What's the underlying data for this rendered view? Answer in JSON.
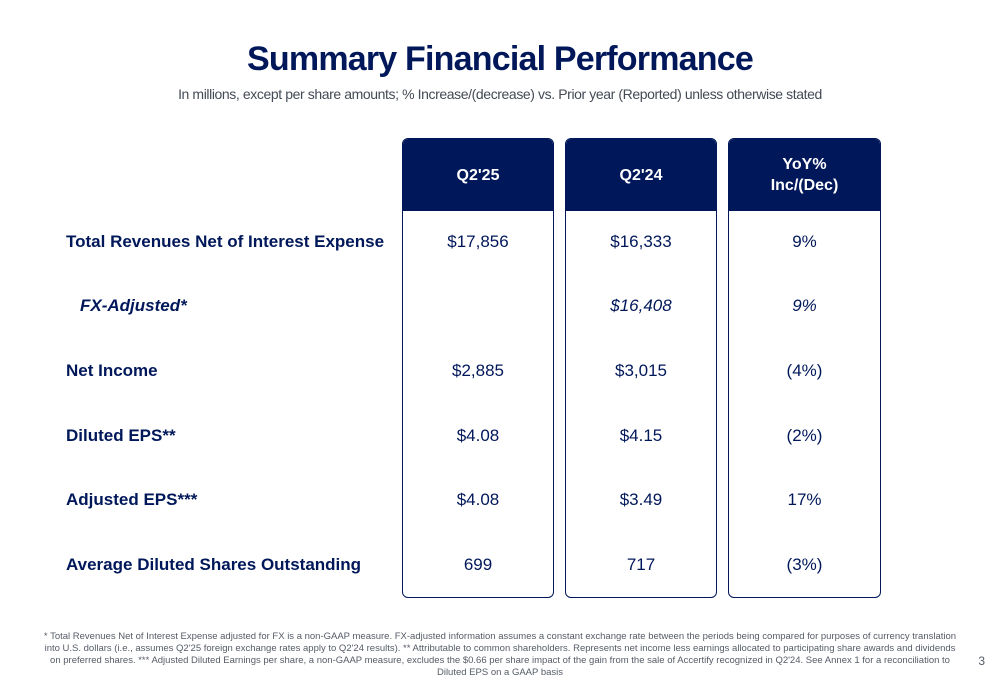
{
  "title": "Summary Financial Performance",
  "subtitle": "In millions, except per share amounts; % Increase/(decrease) vs. Prior year (Reported) unless otherwise stated",
  "columns": [
    {
      "line1": "Q2'25",
      "line2": ""
    },
    {
      "line1": "Q2'24",
      "line2": ""
    },
    {
      "line1": "YoY%",
      "line2": "Inc/(Dec)"
    }
  ],
  "rows": [
    {
      "label": "Total Revenues Net of Interest Expense",
      "q225": "$17,856",
      "q224": "$16,333",
      "yoy": "9%"
    },
    {
      "label": "FX-Adjusted*",
      "q225": "",
      "q224": "$16,408",
      "yoy": "9%"
    },
    {
      "label": "Net Income",
      "q225": "$2,885",
      "q224": "$3,015",
      "yoy": "(4%)"
    },
    {
      "label": "Diluted EPS**",
      "q225": "$4.08",
      "q224": "$4.15",
      "yoy": "(2%)"
    },
    {
      "label": "Adjusted EPS***",
      "q225": "$4.08",
      "q224": "$3.49",
      "yoy": "17%"
    },
    {
      "label": "Average Diluted Shares Outstanding",
      "q225": "699",
      "q224": "717",
      "yoy": "(3%)"
    }
  ],
  "footnote": "* Total Revenues Net of Interest Expense adjusted for FX is a non-GAAP measure. FX-adjusted information assumes a constant exchange rate between the periods being compared for purposes of currency translation into U.S. dollars (i.e., assumes Q2'25 foreign exchange rates apply to Q2'24 results). ** Attributable to common shareholders. Represents net income less earnings allocated to participating share awards and dividends on preferred shares. *** Adjusted Diluted Earnings per share, a non-GAAP measure, excludes the $0.66 per share impact of the gain from the sale of Accertify recognized in Q2'24. See Annex 1 for a reconciliation to Diluted EPS on a GAAP basis",
  "page_number": "3"
}
